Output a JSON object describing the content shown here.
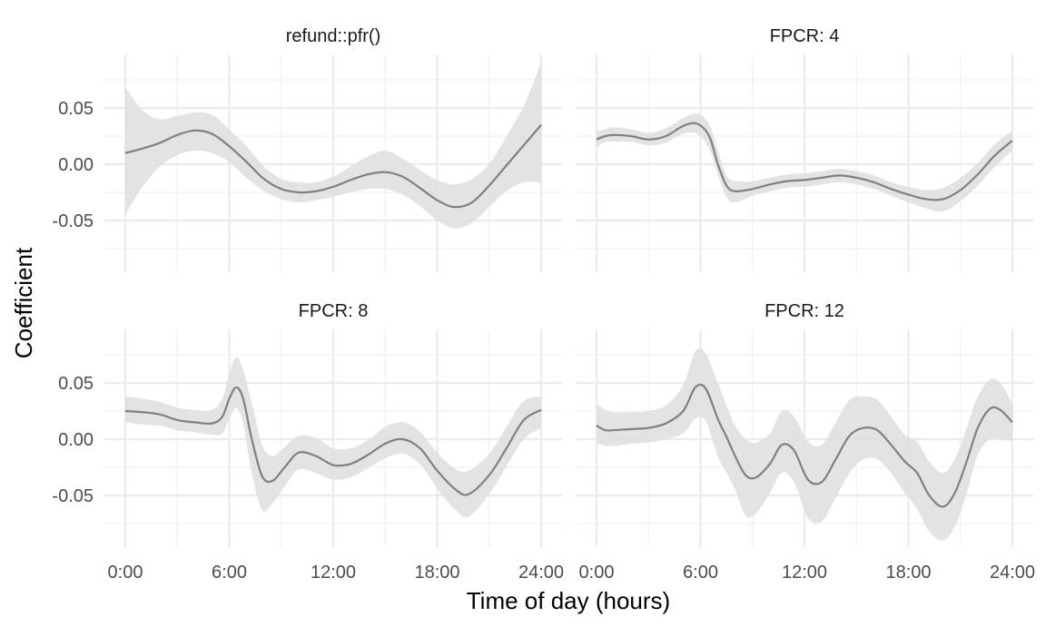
{
  "chart_data": {
    "type": "line",
    "xlabel": "Time of day (hours)",
    "ylabel": "Coefficient",
    "xlim": [
      0,
      24
    ],
    "ylim": [
      -0.095,
      0.095
    ],
    "x_ticks": [
      0,
      6,
      12,
      18,
      24
    ],
    "x_tick_labels": [
      "0:00",
      "6:00",
      "12:00",
      "18:00",
      "24:00"
    ],
    "y_ticks": [
      -0.05,
      0,
      0.05
    ],
    "y_tick_labels": [
      "-0.05",
      "0.00",
      "0.05"
    ],
    "grid": true,
    "colors": {
      "line": "#808080",
      "band": "#e0e0e0",
      "grid": "#ebebeb"
    },
    "panels": [
      {
        "title": "refund::pfr()",
        "x": [
          0,
          1,
          2,
          3,
          4,
          5,
          6,
          7,
          8,
          9,
          10,
          11,
          12,
          13,
          14,
          15,
          16,
          17,
          18,
          19,
          20,
          21,
          22,
          23,
          24
        ],
        "y": [
          0.01,
          0.014,
          0.019,
          0.026,
          0.03,
          0.027,
          0.016,
          0.002,
          -0.013,
          -0.022,
          -0.025,
          -0.024,
          -0.02,
          -0.014,
          -0.009,
          -0.007,
          -0.011,
          -0.021,
          -0.032,
          -0.038,
          -0.034,
          -0.019,
          -0.001,
          0.017,
          0.035
        ],
        "lower": [
          -0.045,
          -0.02,
          -0.002,
          0.008,
          0.012,
          0.01,
          0.002,
          -0.012,
          -0.024,
          -0.031,
          -0.034,
          -0.032,
          -0.029,
          -0.025,
          -0.022,
          -0.022,
          -0.027,
          -0.037,
          -0.05,
          -0.057,
          -0.052,
          -0.038,
          -0.024,
          -0.016,
          -0.016
        ],
        "upper": [
          0.068,
          0.048,
          0.04,
          0.043,
          0.046,
          0.044,
          0.031,
          0.016,
          -0.002,
          -0.013,
          -0.016,
          -0.016,
          -0.011,
          -0.002,
          0.007,
          0.012,
          0.005,
          -0.005,
          -0.014,
          -0.018,
          -0.013,
          0.0,
          0.025,
          0.052,
          0.09
        ]
      },
      {
        "title": "FPCR: 4",
        "x": [
          0,
          0.5,
          1,
          2,
          3,
          4,
          5,
          5.8,
          6.5,
          7,
          7.5,
          8,
          9,
          10,
          11,
          12,
          13,
          14,
          15,
          16,
          17,
          18,
          19,
          20,
          21,
          22,
          23,
          24
        ],
        "y": [
          0.022,
          0.025,
          0.026,
          0.025,
          0.022,
          0.025,
          0.034,
          0.036,
          0.025,
          0.0,
          -0.019,
          -0.024,
          -0.022,
          -0.018,
          -0.015,
          -0.014,
          -0.012,
          -0.01,
          -0.012,
          -0.016,
          -0.022,
          -0.027,
          -0.031,
          -0.031,
          -0.023,
          -0.009,
          0.008,
          0.021
        ],
        "lower": [
          0.015,
          0.02,
          0.02,
          0.02,
          0.017,
          0.019,
          0.027,
          0.027,
          0.014,
          -0.009,
          -0.029,
          -0.034,
          -0.028,
          -0.024,
          -0.021,
          -0.02,
          -0.018,
          -0.016,
          -0.018,
          -0.022,
          -0.028,
          -0.034,
          -0.039,
          -0.042,
          -0.033,
          -0.019,
          -0.002,
          0.012
        ],
        "upper": [
          0.029,
          0.031,
          0.033,
          0.031,
          0.028,
          0.032,
          0.041,
          0.045,
          0.036,
          0.012,
          -0.01,
          -0.015,
          -0.015,
          -0.012,
          -0.009,
          -0.008,
          -0.006,
          -0.004,
          -0.006,
          -0.01,
          -0.016,
          -0.02,
          -0.023,
          -0.021,
          -0.012,
          0.001,
          0.018,
          0.03
        ]
      },
      {
        "title": "FPCR: 8",
        "x": [
          0,
          1,
          2,
          3,
          4,
          5,
          5.6,
          6.0,
          6.4,
          6.8,
          7.3,
          7.9,
          8.5,
          9.2,
          10,
          11,
          12,
          13,
          14,
          15,
          16,
          17,
          18,
          19,
          19.8,
          21,
          22,
          23,
          24
        ],
        "y": [
          0.025,
          0.024,
          0.022,
          0.017,
          0.015,
          0.014,
          0.02,
          0.036,
          0.046,
          0.036,
          0.0,
          -0.033,
          -0.037,
          -0.025,
          -0.012,
          -0.015,
          -0.023,
          -0.022,
          -0.014,
          -0.004,
          0.0,
          -0.008,
          -0.028,
          -0.044,
          -0.049,
          -0.032,
          -0.008,
          0.017,
          0.026
        ],
        "lower": [
          0.015,
          0.013,
          0.012,
          0.008,
          0.006,
          0.004,
          0.005,
          0.018,
          0.028,
          0.014,
          -0.03,
          -0.063,
          -0.057,
          -0.042,
          -0.027,
          -0.03,
          -0.036,
          -0.034,
          -0.026,
          -0.017,
          -0.013,
          -0.022,
          -0.044,
          -0.062,
          -0.069,
          -0.049,
          -0.024,
          0.0,
          0.01
        ],
        "upper": [
          0.038,
          0.036,
          0.033,
          0.028,
          0.026,
          0.026,
          0.036,
          0.058,
          0.073,
          0.062,
          0.032,
          -0.005,
          -0.015,
          -0.007,
          0.003,
          0.001,
          -0.008,
          -0.008,
          -0.001,
          0.011,
          0.015,
          0.007,
          -0.012,
          -0.026,
          -0.028,
          -0.013,
          0.011,
          0.034,
          0.038
        ]
      },
      {
        "title": "FPCR: 12",
        "x": [
          0,
          0.5,
          1,
          2,
          3,
          4,
          5,
          5.7,
          6.3,
          7,
          7.5,
          8,
          8.6,
          9.2,
          10,
          10.7,
          11.4,
          12.2,
          13,
          13.8,
          14.6,
          15.4,
          16.2,
          17,
          17.8,
          18.5,
          19.2,
          20,
          20.7,
          21.4,
          22,
          22.7,
          23.3,
          24
        ],
        "y": [
          0.012,
          0.008,
          0.008,
          0.009,
          0.01,
          0.014,
          0.025,
          0.046,
          0.045,
          0.018,
          0.002,
          -0.015,
          -0.032,
          -0.034,
          -0.022,
          -0.005,
          -0.01,
          -0.036,
          -0.038,
          -0.018,
          0.003,
          0.01,
          0.008,
          -0.005,
          -0.02,
          -0.03,
          -0.05,
          -0.06,
          -0.047,
          -0.018,
          0.01,
          0.027,
          0.026,
          0.015
        ],
        "lower": [
          -0.003,
          -0.006,
          -0.006,
          -0.004,
          -0.003,
          0.0,
          0.005,
          0.018,
          0.016,
          -0.015,
          -0.03,
          -0.045,
          -0.068,
          -0.066,
          -0.048,
          -0.03,
          -0.038,
          -0.07,
          -0.073,
          -0.052,
          -0.03,
          -0.018,
          -0.018,
          -0.03,
          -0.048,
          -0.062,
          -0.082,
          -0.09,
          -0.077,
          -0.046,
          -0.014,
          0.0,
          0.0,
          -0.002
        ],
        "upper": [
          0.032,
          0.026,
          0.024,
          0.024,
          0.025,
          0.03,
          0.048,
          0.078,
          0.076,
          0.05,
          0.03,
          0.012,
          0.0,
          -0.003,
          0.005,
          0.025,
          0.02,
          -0.002,
          -0.005,
          0.015,
          0.035,
          0.038,
          0.035,
          0.02,
          0.004,
          -0.002,
          -0.02,
          -0.03,
          -0.017,
          0.012,
          0.038,
          0.053,
          0.05,
          0.032
        ]
      }
    ]
  }
}
